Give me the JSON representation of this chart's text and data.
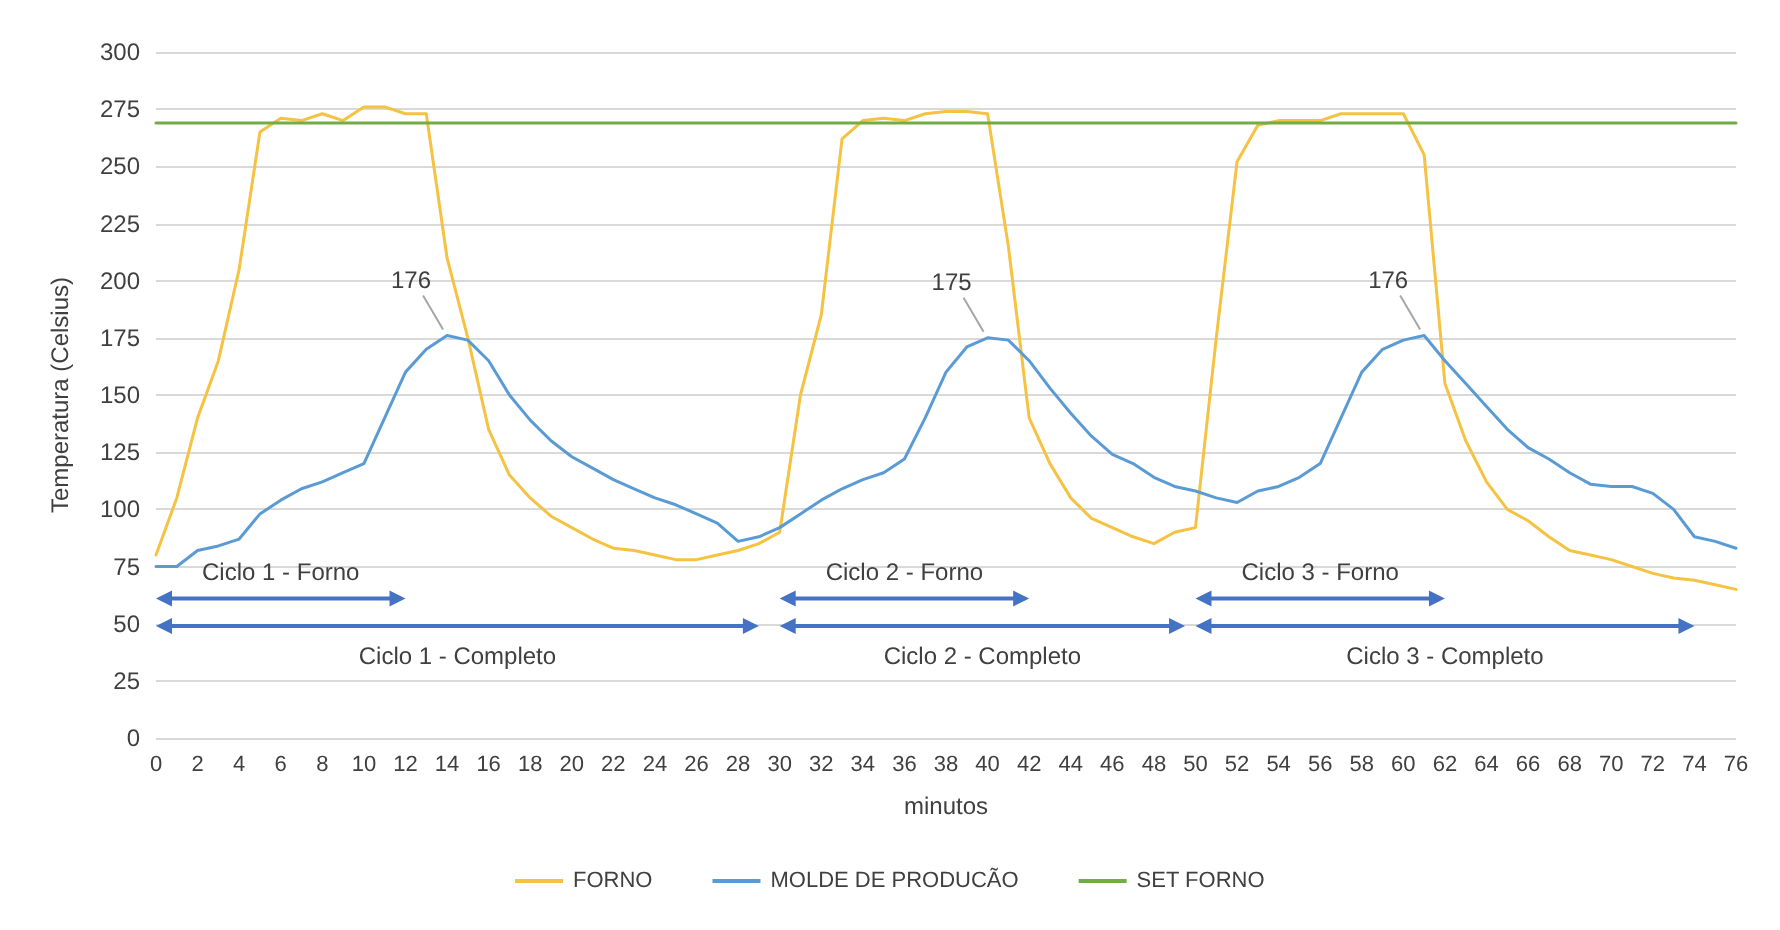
{
  "chart_data": {
    "type": "line",
    "xlabel": "minutos",
    "ylabel": "Temperatura (Celsius)",
    "x": [
      0,
      1,
      2,
      3,
      4,
      5,
      6,
      7,
      8,
      9,
      10,
      11,
      12,
      13,
      14,
      15,
      16,
      17,
      18,
      19,
      20,
      21,
      22,
      23,
      24,
      25,
      26,
      27,
      28,
      29,
      30,
      31,
      32,
      33,
      34,
      35,
      36,
      37,
      38,
      39,
      40,
      41,
      42,
      43,
      44,
      45,
      46,
      47,
      48,
      49,
      50,
      51,
      52,
      53,
      54,
      55,
      56,
      57,
      58,
      59,
      60,
      61,
      62,
      63,
      64,
      65,
      66,
      67,
      68,
      69,
      70,
      71,
      72,
      73,
      74,
      75,
      76
    ],
    "series": [
      {
        "name": "FORNO",
        "color": "#f5c242",
        "values": [
          80,
          105,
          140,
          165,
          205,
          265,
          271,
          270,
          273,
          270,
          276,
          276,
          273,
          273,
          210,
          175,
          135,
          115,
          105,
          97,
          92,
          87,
          83,
          82,
          80,
          78,
          78,
          80,
          82,
          85,
          90,
          150,
          185,
          262,
          270,
          271,
          270,
          273,
          274,
          274,
          273,
          215,
          140,
          120,
          105,
          96,
          92,
          88,
          85,
          90,
          92,
          175,
          252,
          268,
          270,
          270,
          270,
          273,
          273,
          273,
          273,
          255,
          155,
          130,
          112,
          100,
          95,
          88,
          82,
          80,
          78,
          75,
          72,
          70,
          69,
          67,
          65
        ]
      },
      {
        "name": "MOLDE DE PRODUCÃO",
        "color": "#5b9bd5",
        "values": [
          75,
          75,
          82,
          84,
          87,
          98,
          104,
          109,
          112,
          116,
          120,
          140,
          160,
          170,
          176,
          174,
          165,
          150,
          139,
          130,
          123,
          118,
          113,
          109,
          105,
          102,
          98,
          94,
          86,
          88,
          92,
          98,
          104,
          109,
          113,
          116,
          122,
          140,
          160,
          171,
          175,
          174,
          165,
          153,
          142,
          132,
          124,
          120,
          114,
          110,
          108,
          105,
          103,
          108,
          110,
          114,
          120,
          140,
          160,
          170,
          174,
          176,
          165,
          155,
          145,
          135,
          127,
          122,
          116,
          111,
          110,
          110,
          107,
          100,
          88,
          86,
          83
        ]
      },
      {
        "name": "SET FORNO",
        "color": "#70ad47",
        "values": [
          269,
          269,
          269,
          269,
          269,
          269,
          269,
          269,
          269,
          269,
          269,
          269,
          269,
          269,
          269,
          269,
          269,
          269,
          269,
          269,
          269,
          269,
          269,
          269,
          269,
          269,
          269,
          269,
          269,
          269,
          269,
          269,
          269,
          269,
          269,
          269,
          269,
          269,
          269,
          269,
          269,
          269,
          269,
          269,
          269,
          269,
          269,
          269,
          269,
          269,
          269,
          269,
          269,
          269,
          269,
          269,
          269,
          269,
          269,
          269,
          269,
          269,
          269,
          269,
          269,
          269,
          269,
          269,
          269,
          269,
          269,
          269,
          269,
          269,
          269,
          269,
          269
        ]
      }
    ],
    "xlim": [
      0,
      76
    ],
    "xticks": [
      0,
      2,
      4,
      6,
      8,
      10,
      12,
      14,
      16,
      18,
      20,
      22,
      24,
      26,
      28,
      30,
      32,
      34,
      36,
      38,
      40,
      42,
      44,
      46,
      48,
      50,
      52,
      54,
      56,
      58,
      60,
      62,
      64,
      66,
      68,
      70,
      72,
      74,
      76
    ],
    "ylim": [
      0,
      300
    ],
    "yticks": [
      0,
      25,
      50,
      75,
      100,
      125,
      150,
      175,
      200,
      225,
      250,
      275,
      300
    ],
    "grid": "y",
    "legend": "bottom",
    "marker": "none",
    "line_style": "solid",
    "annotations": [
      {
        "text": "176",
        "x": 14,
        "y": 176
      },
      {
        "text": "175",
        "x": 40,
        "y": 175
      },
      {
        "text": "176",
        "x": 61,
        "y": 176
      },
      "Ciclo 1 - Forno",
      "Ciclo 1 - Completo",
      "Ciclo 2 - Forno",
      "Ciclo 2 - Completo",
      "Ciclo 3 - Forno",
      "Ciclo 3 - Completo"
    ]
  }
}
